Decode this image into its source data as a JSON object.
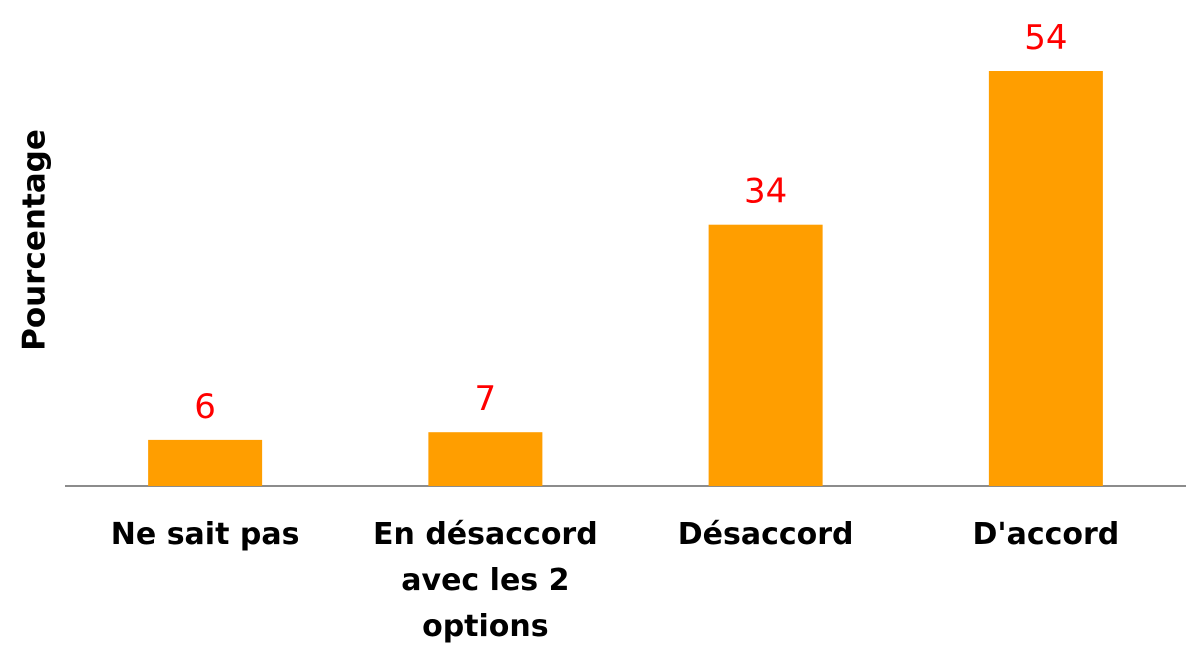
{
  "chart_data": {
    "type": "bar",
    "y_label": "Pourcentage",
    "categories": [
      "Ne sait pas",
      "En désaccord avec les 2 options",
      "Désaccord",
      "D'accord"
    ],
    "values": [
      6,
      7,
      34,
      54
    ],
    "color": "#ff9e00",
    "value_label_color": "#ff0000",
    "ylim": [
      0,
      54
    ]
  }
}
